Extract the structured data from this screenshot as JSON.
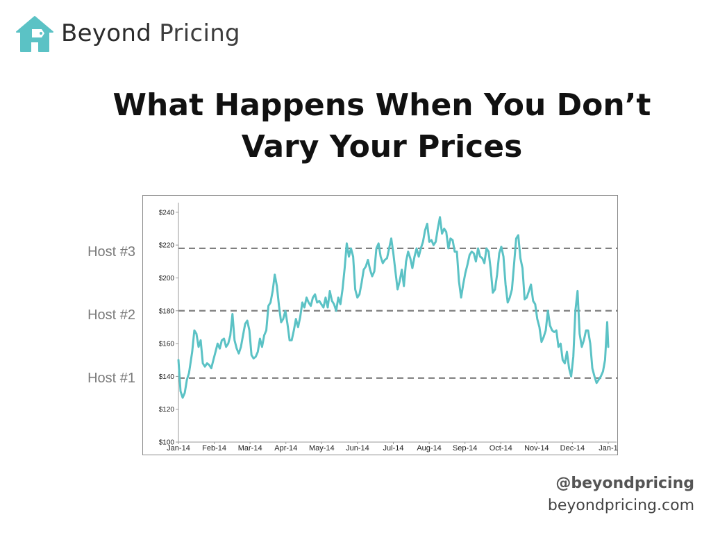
{
  "brand": {
    "name_bold": "Beyond",
    "name_light": "Pricing",
    "logo_icon": "house-tag-icon",
    "accent_color": "#5bc2c5"
  },
  "slide": {
    "title": "What Happens When You Don’t Vary Your Prices"
  },
  "footer": {
    "handle": "@beyondpricing",
    "site": "beyondpricing.com"
  },
  "chart_data": {
    "type": "line",
    "title": "",
    "xlabel": "",
    "ylabel": "",
    "ylim": [
      100,
      245
    ],
    "yticks": [
      100,
      120,
      140,
      160,
      180,
      200,
      220,
      240
    ],
    "ytick_labels": [
      "$100",
      "$120",
      "$140",
      "$160",
      "$180",
      "$200",
      "$220",
      "$240"
    ],
    "xtick_labels": [
      "Jan-14",
      "Feb-14",
      "Mar-14",
      "Apr-14",
      "May-14",
      "Jun-14",
      "Jul-14",
      "Aug-14",
      "Sep-14",
      "Oct-14",
      "Nov-14",
      "Dec-14",
      "Jan-1"
    ],
    "grid": false,
    "line_color": "#5bc2c5",
    "reference_lines": [
      {
        "label": "Host #3",
        "value": 218
      },
      {
        "label": "Host #2",
        "value": 180
      },
      {
        "label": "Host #1",
        "value": 139
      }
    ],
    "series": [
      {
        "values": [
          [
            0,
            150
          ],
          [
            2,
            131
          ],
          [
            4,
            127
          ],
          [
            6,
            130
          ],
          [
            8,
            138
          ],
          [
            10,
            142
          ],
          [
            13,
            155
          ],
          [
            15,
            168
          ],
          [
            17,
            166
          ],
          [
            19,
            158
          ],
          [
            21,
            162
          ],
          [
            23,
            148
          ],
          [
            25,
            146
          ],
          [
            27,
            148
          ],
          [
            29,
            147
          ],
          [
            31,
            145
          ],
          [
            33,
            150
          ],
          [
            35,
            155
          ],
          [
            37,
            160
          ],
          [
            39,
            157
          ],
          [
            41,
            162
          ],
          [
            43,
            163
          ],
          [
            45,
            158
          ],
          [
            47,
            160
          ],
          [
            49,
            165
          ],
          [
            51,
            178
          ],
          [
            53,
            162
          ],
          [
            55,
            157
          ],
          [
            57,
            154
          ],
          [
            59,
            158
          ],
          [
            61,
            165
          ],
          [
            63,
            172
          ],
          [
            65,
            174
          ],
          [
            67,
            168
          ],
          [
            69,
            153
          ],
          [
            71,
            151
          ],
          [
            73,
            152
          ],
          [
            75,
            155
          ],
          [
            77,
            163
          ],
          [
            79,
            158
          ],
          [
            81,
            165
          ],
          [
            83,
            168
          ],
          [
            85,
            183
          ],
          [
            87,
            185
          ],
          [
            89,
            192
          ],
          [
            91,
            202
          ],
          [
            93,
            195
          ],
          [
            95,
            183
          ],
          [
            97,
            173
          ],
          [
            99,
            175
          ],
          [
            101,
            180
          ],
          [
            103,
            172
          ],
          [
            105,
            162
          ],
          [
            107,
            162
          ],
          [
            109,
            168
          ],
          [
            111,
            175
          ],
          [
            113,
            170
          ],
          [
            115,
            176
          ],
          [
            117,
            185
          ],
          [
            119,
            182
          ],
          [
            121,
            188
          ],
          [
            123,
            185
          ],
          [
            125,
            183
          ],
          [
            127,
            188
          ],
          [
            129,
            190
          ],
          [
            131,
            185
          ],
          [
            133,
            186
          ],
          [
            135,
            184
          ],
          [
            137,
            182
          ],
          [
            139,
            188
          ],
          [
            141,
            182
          ],
          [
            143,
            192
          ],
          [
            145,
            186
          ],
          [
            147,
            184
          ],
          [
            149,
            180
          ],
          [
            151,
            188
          ],
          [
            153,
            184
          ],
          [
            155,
            193
          ],
          [
            157,
            206
          ],
          [
            159,
            221
          ],
          [
            161,
            213
          ],
          [
            163,
            218
          ],
          [
            165,
            213
          ],
          [
            167,
            193
          ],
          [
            169,
            188
          ],
          [
            171,
            190
          ],
          [
            173,
            197
          ],
          [
            175,
            205
          ],
          [
            177,
            207
          ],
          [
            179,
            211
          ],
          [
            181,
            205
          ],
          [
            183,
            201
          ],
          [
            185,
            204
          ],
          [
            187,
            218
          ],
          [
            189,
            221
          ],
          [
            191,
            213
          ],
          [
            193,
            209
          ],
          [
            195,
            211
          ],
          [
            197,
            212
          ],
          [
            199,
            218
          ],
          [
            201,
            224
          ],
          [
            203,
            215
          ],
          [
            205,
            204
          ],
          [
            207,
            193
          ],
          [
            209,
            198
          ],
          [
            211,
            205
          ],
          [
            213,
            195
          ],
          [
            215,
            210
          ],
          [
            217,
            216
          ],
          [
            219,
            212
          ],
          [
            221,
            206
          ],
          [
            223,
            213
          ],
          [
            225,
            218
          ],
          [
            227,
            213
          ],
          [
            229,
            218
          ],
          [
            231,
            222
          ],
          [
            233,
            229
          ],
          [
            235,
            233
          ],
          [
            237,
            222
          ],
          [
            239,
            223
          ],
          [
            241,
            220
          ],
          [
            243,
            222
          ],
          [
            245,
            230
          ],
          [
            247,
            237
          ],
          [
            249,
            227
          ],
          [
            251,
            230
          ],
          [
            253,
            228
          ],
          [
            255,
            218
          ],
          [
            257,
            224
          ],
          [
            259,
            223
          ],
          [
            261,
            216
          ],
          [
            263,
            216
          ],
          [
            265,
            198
          ],
          [
            267,
            188
          ],
          [
            269,
            196
          ],
          [
            271,
            203
          ],
          [
            273,
            208
          ],
          [
            275,
            214
          ],
          [
            277,
            216
          ],
          [
            279,
            215
          ],
          [
            281,
            210
          ],
          [
            283,
            218
          ],
          [
            285,
            213
          ],
          [
            287,
            212
          ],
          [
            289,
            209
          ],
          [
            291,
            218
          ],
          [
            293,
            216
          ],
          [
            295,
            205
          ],
          [
            297,
            191
          ],
          [
            299,
            193
          ],
          [
            301,
            202
          ],
          [
            303,
            215
          ],
          [
            305,
            219
          ],
          [
            307,
            213
          ],
          [
            309,
            196
          ],
          [
            311,
            185
          ],
          [
            313,
            188
          ],
          [
            315,
            193
          ],
          [
            317,
            208
          ],
          [
            319,
            224
          ],
          [
            321,
            226
          ],
          [
            323,
            212
          ],
          [
            325,
            206
          ],
          [
            327,
            187
          ],
          [
            329,
            188
          ],
          [
            331,
            192
          ],
          [
            333,
            196
          ],
          [
            335,
            186
          ],
          [
            337,
            184
          ],
          [
            339,
            175
          ],
          [
            341,
            170
          ],
          [
            343,
            161
          ],
          [
            345,
            164
          ],
          [
            347,
            168
          ],
          [
            349,
            180
          ],
          [
            351,
            171
          ],
          [
            353,
            168
          ],
          [
            355,
            167
          ],
          [
            357,
            168
          ],
          [
            359,
            158
          ],
          [
            361,
            160
          ],
          [
            363,
            150
          ],
          [
            365,
            148
          ],
          [
            367,
            155
          ],
          [
            369,
            145
          ],
          [
            371,
            140
          ],
          [
            373,
            152
          ],
          [
            375,
            180
          ],
          [
            377,
            192
          ],
          [
            379,
            166
          ],
          [
            381,
            158
          ],
          [
            383,
            162
          ],
          [
            385,
            168
          ],
          [
            387,
            168
          ],
          [
            389,
            160
          ],
          [
            391,
            145
          ],
          [
            393,
            140
          ],
          [
            395,
            136
          ],
          [
            397,
            138
          ],
          [
            399,
            140
          ],
          [
            401,
            143
          ],
          [
            403,
            150
          ],
          [
            405,
            173
          ],
          [
            406,
            158
          ]
        ]
      }
    ]
  }
}
